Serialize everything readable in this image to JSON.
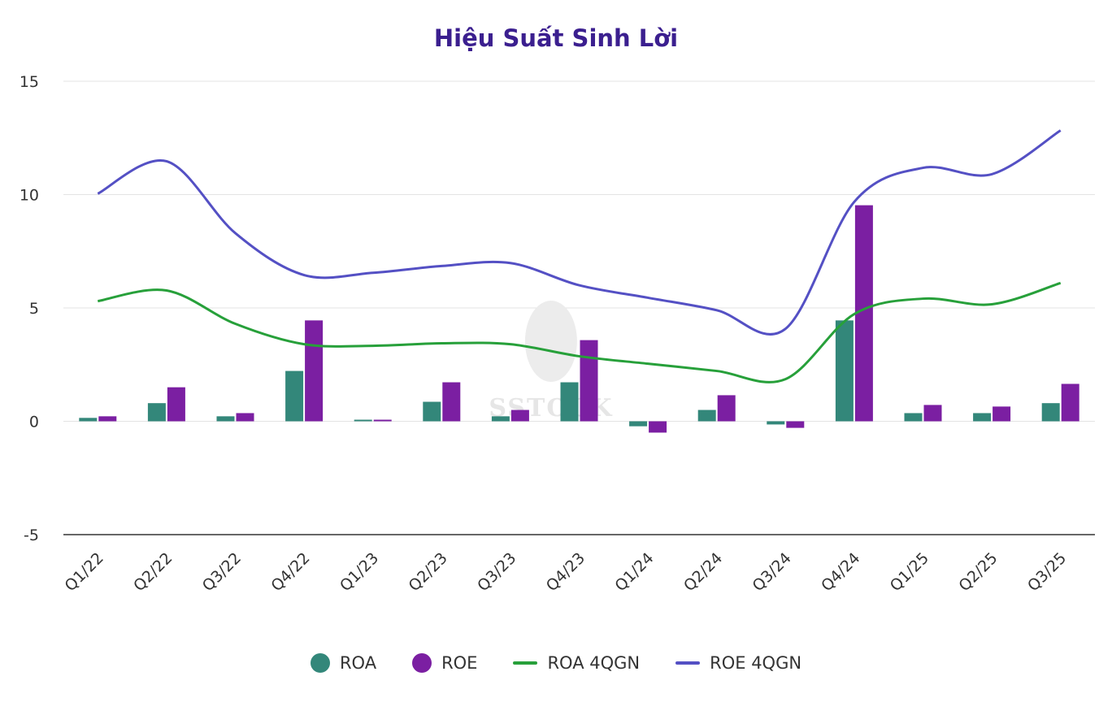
{
  "chart_data": {
    "type": "bar",
    "title": "Hiệu Suất Sinh Lời",
    "xlabel": "",
    "ylabel": "",
    "ylim": [
      -5,
      15
    ],
    "yticks": [
      15,
      10,
      5,
      0,
      -5
    ],
    "grid": true,
    "legend_position": "bottom",
    "categories": [
      "Q1/22",
      "Q2/22",
      "Q3/22",
      "Q4/22",
      "Q1/23",
      "Q2/23",
      "Q3/23",
      "Q4/23",
      "Q1/24",
      "Q2/24",
      "Q3/24",
      "Q4/24",
      "Q1/25",
      "Q2/25",
      "Q3/25"
    ],
    "series": [
      {
        "name": "ROA",
        "type": "bar",
        "color": "#33877a",
        "values": [
          0.15,
          0.8,
          0.22,
          2.22,
          0.07,
          0.86,
          0.22,
          1.72,
          -0.22,
          0.5,
          -0.14,
          4.45,
          0.36,
          0.36,
          0.8
        ]
      },
      {
        "name": "ROE",
        "type": "bar",
        "color": "#7b1fa2",
        "values": [
          0.22,
          1.5,
          0.36,
          4.45,
          0.07,
          1.72,
          0.5,
          3.58,
          -0.5,
          1.15,
          -0.29,
          9.53,
          0.72,
          0.65,
          1.65
        ]
      },
      {
        "name": "ROA 4QGN",
        "type": "line",
        "color": "#27a03a",
        "values": [
          5.3,
          5.77,
          4.3,
          3.4,
          3.33,
          3.44,
          3.4,
          2.87,
          2.54,
          2.22,
          1.86,
          4.73,
          5.41,
          5.16,
          6.1
        ]
      },
      {
        "name": "ROE 4QGN",
        "type": "line",
        "color": "#5450c4",
        "values": [
          10.04,
          11.47,
          8.3,
          6.45,
          6.55,
          6.85,
          6.98,
          6.0,
          5.45,
          4.9,
          4.08,
          9.68,
          11.18,
          10.9,
          12.83
        ]
      }
    ]
  },
  "watermark": "SSTOCK"
}
